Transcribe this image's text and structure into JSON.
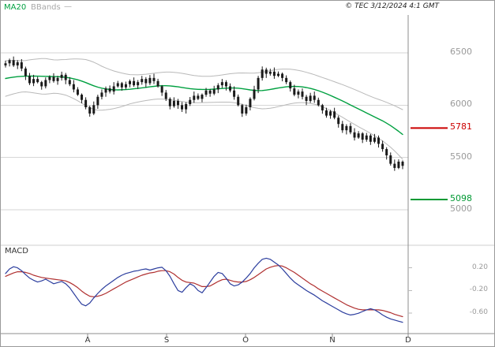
{
  "header": {
    "legend_ma": "MA20",
    "legend_bb": "BBands",
    "legend_dash": "—",
    "copyright": "© TEC 3/12/2024 4:1 GMT"
  },
  "macd_panel": {
    "label": "MACD"
  },
  "chart_data": {
    "type": "candlestick",
    "title": "",
    "price_axis": {
      "ticks": [
        "6500",
        "6000",
        "5500",
        "5000"
      ],
      "tick_values": [
        6500,
        6000,
        5500,
        5000
      ]
    },
    "macd_axis": {
      "ticks": [
        "0.20",
        "-0.20",
        "-0.60"
      ],
      "tick_values": [
        0.2,
        -0.2,
        -0.6
      ]
    },
    "x_axis": {
      "months": [
        "A",
        "S",
        "O",
        "N",
        "D"
      ]
    },
    "levels": [
      {
        "label": "5781",
        "value": 5781,
        "color": "#cc0000"
      },
      {
        "label": "5098",
        "value": 5098,
        "color": "#009933"
      }
    ],
    "series": {
      "open": [
        6380,
        6400,
        6430,
        6380,
        6410,
        6350,
        6280,
        6210,
        6250,
        6220,
        6180,
        6240,
        6270,
        6230,
        6260,
        6290,
        6240,
        6200,
        6150,
        6100,
        6050,
        5980,
        5920,
        6000,
        6080,
        6120,
        6160,
        6130,
        6180,
        6210,
        6170,
        6200,
        6230,
        6190,
        6220,
        6250,
        6210,
        6260,
        6230,
        6180,
        6120,
        6060,
        5990,
        6040,
        6000,
        5960,
        6010,
        6050,
        6090,
        6060,
        6100,
        6140,
        6110,
        6150,
        6190,
        6220,
        6180,
        6140,
        6080,
        6000,
        5920,
        5980,
        6060,
        6150,
        6260,
        6340,
        6300,
        6320,
        6280,
        6300,
        6260,
        6220,
        6160,
        6100,
        6130,
        6080,
        6040,
        6090,
        6050,
        6000,
        5950,
        5900,
        5940,
        5880,
        5820,
        5760,
        5800,
        5740,
        5690,
        5730,
        5670,
        5710,
        5650,
        5690,
        5630,
        5580,
        5520,
        5440,
        5400,
        5460
      ],
      "high": [
        6425,
        6445,
        6465,
        6430,
        6440,
        6368,
        6308,
        6290,
        6272,
        6232,
        6265,
        6285,
        6305,
        6280,
        6320,
        6308,
        6268,
        6240,
        6172,
        6112,
        6075,
        5995,
        6035,
        6100,
        6150,
        6178,
        6188,
        6220,
        6232,
        6222,
        6225,
        6245,
        6265,
        6240,
        6280,
        6268,
        6288,
        6300,
        6252,
        6192,
        6145,
        6075,
        6075,
        6060,
        6030,
        6028,
        6078,
        6130,
        6112,
        6112,
        6165,
        6155,
        6185,
        6210,
        6250,
        6238,
        6208,
        6180,
        6102,
        6012,
        6005,
        6075,
        6185,
        6280,
        6370,
        6358,
        6348,
        6360,
        6322,
        6312,
        6285,
        6235,
        6195,
        6150,
        6160,
        6098,
        6118,
        6130,
        6072,
        6012,
        5975,
        5955,
        5975,
        5900,
        5850,
        5818,
        5828,
        5780,
        5752,
        5742,
        5735,
        5725,
        5725,
        5710,
        5660,
        5598,
        5548,
        5480,
        5482,
        5472
      ],
      "low": [
        6360,
        6370,
        6365,
        6345,
        6325,
        6240,
        6192,
        6182,
        6208,
        6148,
        6160,
        6210,
        6215,
        6195,
        6235,
        6200,
        6182,
        6122,
        6088,
        6018,
        5960,
        5890,
        5905,
        5965,
        6055,
        6080,
        6112,
        6102,
        6168,
        6138,
        6150,
        6170,
        6175,
        6155,
        6195,
        6170,
        6192,
        6202,
        6168,
        6088,
        6040,
        5960,
        5975,
        5965,
        5935,
        5920,
        5992,
        6022,
        6048,
        6028,
        6080,
        6080,
        6095,
        6115,
        6165,
        6140,
        6122,
        6052,
        5988,
        5888,
        5900,
        5950,
        6045,
        6115,
        6235,
        6260,
        6282,
        6252,
        6268,
        6228,
        6200,
        6130,
        6085,
        6065,
        6055,
        6000,
        6022,
        6022,
        5988,
        5918,
        5880,
        5870,
        5865,
        5785,
        5735,
        5720,
        5722,
        5662,
        5678,
        5638,
        5650,
        5620,
        5635,
        5595,
        5555,
        5480,
        5422,
        5372,
        5388,
        5388
      ],
      "close": [
        6400,
        6430,
        6380,
        6410,
        6350,
        6280,
        6210,
        6250,
        6220,
        6180,
        6240,
        6270,
        6230,
        6260,
        6290,
        6240,
        6200,
        6150,
        6100,
        6050,
        5980,
        5920,
        6000,
        6080,
        6120,
        6160,
        6130,
        6180,
        6210,
        6170,
        6200,
        6230,
        6190,
        6220,
        6250,
        6210,
        6260,
        6230,
        6180,
        6120,
        6060,
        5990,
        6040,
        6000,
        5960,
        6010,
        6050,
        6090,
        6060,
        6100,
        6140,
        6110,
        6150,
        6190,
        6220,
        6180,
        6140,
        6080,
        6000,
        5920,
        5980,
        6060,
        6150,
        6260,
        6340,
        6300,
        6320,
        6280,
        6300,
        6260,
        6220,
        6160,
        6100,
        6130,
        6080,
        6040,
        6090,
        6050,
        6000,
        5950,
        5900,
        5940,
        5880,
        5820,
        5760,
        5800,
        5740,
        5690,
        5730,
        5670,
        5710,
        5650,
        5690,
        5630,
        5580,
        5520,
        5440,
        5400,
        5460,
        5420
      ],
      "ma20": [
        6255,
        6262,
        6268,
        6272,
        6275,
        6277,
        6278,
        6278,
        6277,
        6276,
        6275,
        6274,
        6273,
        6272,
        6270,
        6266,
        6260,
        6252,
        6242,
        6230,
        6216,
        6200,
        6185,
        6172,
        6162,
        6155,
        6150,
        6147,
        6146,
        6147,
        6149,
        6152,
        6156,
        6160,
        6165,
        6170,
        6175,
        6180,
        6184,
        6186,
        6186,
        6184,
        6180,
        6175,
        6169,
        6163,
        6158,
        6154,
        6151,
        6150,
        6150,
        6151,
        6153,
        6156,
        6159,
        6162,
        6164,
        6164,
        6162,
        6158,
        6152,
        6146,
        6141,
        6139,
        6140,
        6144,
        6150,
        6157,
        6164,
        6170,
        6175,
        6178,
        6179,
        6178,
        6174,
        6168,
        6160,
        6150,
        6138,
        6124,
        6109,
        6093,
        6076,
        6058,
        6040,
        6021,
        6002,
        5983,
        5964,
        5945,
        5926,
        5907,
        5888,
        5869,
        5850,
        5828,
        5804,
        5778,
        5750,
        5720
      ],
      "bb_upper": [
        6425,
        6427,
        6428,
        6427,
        6425,
        6427,
        6433,
        6438,
        6442,
        6446,
        6445,
        6439,
        6433,
        6432,
        6435,
        6436,
        6440,
        6442,
        6442,
        6440,
        6436,
        6425,
        6410,
        6392,
        6372,
        6355,
        6340,
        6327,
        6316,
        6307,
        6299,
        6292,
        6291,
        6290,
        6293,
        6296,
        6300,
        6305,
        6310,
        6314,
        6316,
        6316,
        6314,
        6310,
        6304,
        6297,
        6290,
        6284,
        6279,
        6276,
        6275,
        6276,
        6279,
        6284,
        6289,
        6295,
        6300,
        6304,
        6307,
        6308,
        6307,
        6306,
        6306,
        6309,
        6315,
        6322,
        6330,
        6337,
        6342,
        6345,
        6345,
        6343,
        6339,
        6333,
        6324,
        6314,
        6303,
        6291,
        6278,
        6264,
        6251,
        6238,
        6224,
        6210,
        6196,
        6181,
        6166,
        6150,
        6134,
        6117,
        6100,
        6084,
        6069,
        6055,
        6042,
        6027,
        6011,
        5994,
        5976,
        5957
      ],
      "bb_lower": [
        6085,
        6097,
        6108,
        6117,
        6125,
        6127,
        6123,
        6118,
        6112,
        6106,
        6105,
        6109,
        6113,
        6112,
        6105,
        6096,
        6080,
        6062,
        6042,
        6020,
        5996,
        5975,
        5960,
        5952,
        5952,
        5955,
        5960,
        5967,
        5976,
        5987,
        5999,
        6012,
        6021,
        6030,
        6037,
        6044,
        6050,
        6055,
        6058,
        6058,
        6056,
        6052,
        6046,
        6040,
        6034,
        6029,
        6026,
        6024,
        6023,
        6024,
        6025,
        6026,
        6027,
        6028,
        6029,
        6029,
        6028,
        6024,
        6017,
        6008,
        5997,
        5986,
        5976,
        5969,
        5965,
        5966,
        5970,
        5977,
        5986,
        5995,
        6005,
        6013,
        6019,
        6023,
        6024,
        6022,
        6017,
        6009,
        5998,
        5984,
        5967,
        5948,
        5928,
        5906,
        5884,
        5861,
        5838,
        5816,
        5794,
        5773,
        5752,
        5730,
        5707,
        5683,
        5658,
        5629,
        5597,
        5562,
        5524,
        5483
      ],
      "macd": [
        0.1,
        0.18,
        0.22,
        0.2,
        0.15,
        0.08,
        0.02,
        -0.02,
        -0.05,
        -0.03,
        0.0,
        -0.04,
        -0.08,
        -0.06,
        -0.04,
        -0.08,
        -0.15,
        -0.25,
        -0.35,
        -0.44,
        -0.47,
        -0.42,
        -0.33,
        -0.25,
        -0.18,
        -0.12,
        -0.07,
        -0.02,
        0.03,
        0.07,
        0.1,
        0.12,
        0.14,
        0.15,
        0.17,
        0.18,
        0.16,
        0.18,
        0.2,
        0.21,
        0.15,
        0.05,
        -0.08,
        -0.2,
        -0.23,
        -0.15,
        -0.08,
        -0.12,
        -0.2,
        -0.24,
        -0.15,
        -0.05,
        0.05,
        0.12,
        0.1,
        0.02,
        -0.08,
        -0.12,
        -0.1,
        -0.05,
        0.02,
        0.1,
        0.2,
        0.28,
        0.35,
        0.37,
        0.35,
        0.3,
        0.25,
        0.18,
        0.1,
        0.02,
        -0.05,
        -0.1,
        -0.15,
        -0.2,
        -0.24,
        -0.28,
        -0.33,
        -0.38,
        -0.42,
        -0.46,
        -0.5,
        -0.54,
        -0.58,
        -0.61,
        -0.63,
        -0.62,
        -0.6,
        -0.57,
        -0.54,
        -0.52,
        -0.54,
        -0.58,
        -0.63,
        -0.67,
        -0.7,
        -0.72,
        -0.74,
        -0.76
      ],
      "signal": [
        0.05,
        0.08,
        0.11,
        0.13,
        0.13,
        0.12,
        0.1,
        0.07,
        0.05,
        0.03,
        0.02,
        0.01,
        0.0,
        -0.01,
        -0.02,
        -0.03,
        -0.06,
        -0.1,
        -0.15,
        -0.21,
        -0.26,
        -0.3,
        -0.31,
        -0.3,
        -0.28,
        -0.25,
        -0.21,
        -0.17,
        -0.13,
        -0.09,
        -0.05,
        -0.02,
        0.01,
        0.04,
        0.07,
        0.09,
        0.11,
        0.12,
        0.14,
        0.15,
        0.15,
        0.13,
        0.09,
        0.03,
        -0.02,
        -0.05,
        -0.06,
        -0.07,
        -0.1,
        -0.13,
        -0.13,
        -0.12,
        -0.08,
        -0.04,
        -0.01,
        0.0,
        -0.02,
        -0.04,
        -0.05,
        -0.05,
        -0.04,
        -0.01,
        0.03,
        0.08,
        0.13,
        0.18,
        0.21,
        0.23,
        0.24,
        0.23,
        0.2,
        0.16,
        0.12,
        0.07,
        0.02,
        -0.03,
        -0.08,
        -0.12,
        -0.17,
        -0.21,
        -0.25,
        -0.29,
        -0.33,
        -0.37,
        -0.41,
        -0.45,
        -0.48,
        -0.51,
        -0.53,
        -0.54,
        -0.54,
        -0.54,
        -0.54,
        -0.54,
        -0.55,
        -0.57,
        -0.59,
        -0.62,
        -0.64,
        -0.66
      ]
    },
    "colors": {
      "candle": "#1a1a1a",
      "ma20": "#00a040",
      "bbands": "#b9b9b9",
      "macd_line": "#2c3e9e",
      "signal_line": "#b03030",
      "grid": "#d6d6d6",
      "border": "#8c8c8c",
      "tick_label": "#9a9a9a",
      "month_label": "#333333"
    }
  }
}
